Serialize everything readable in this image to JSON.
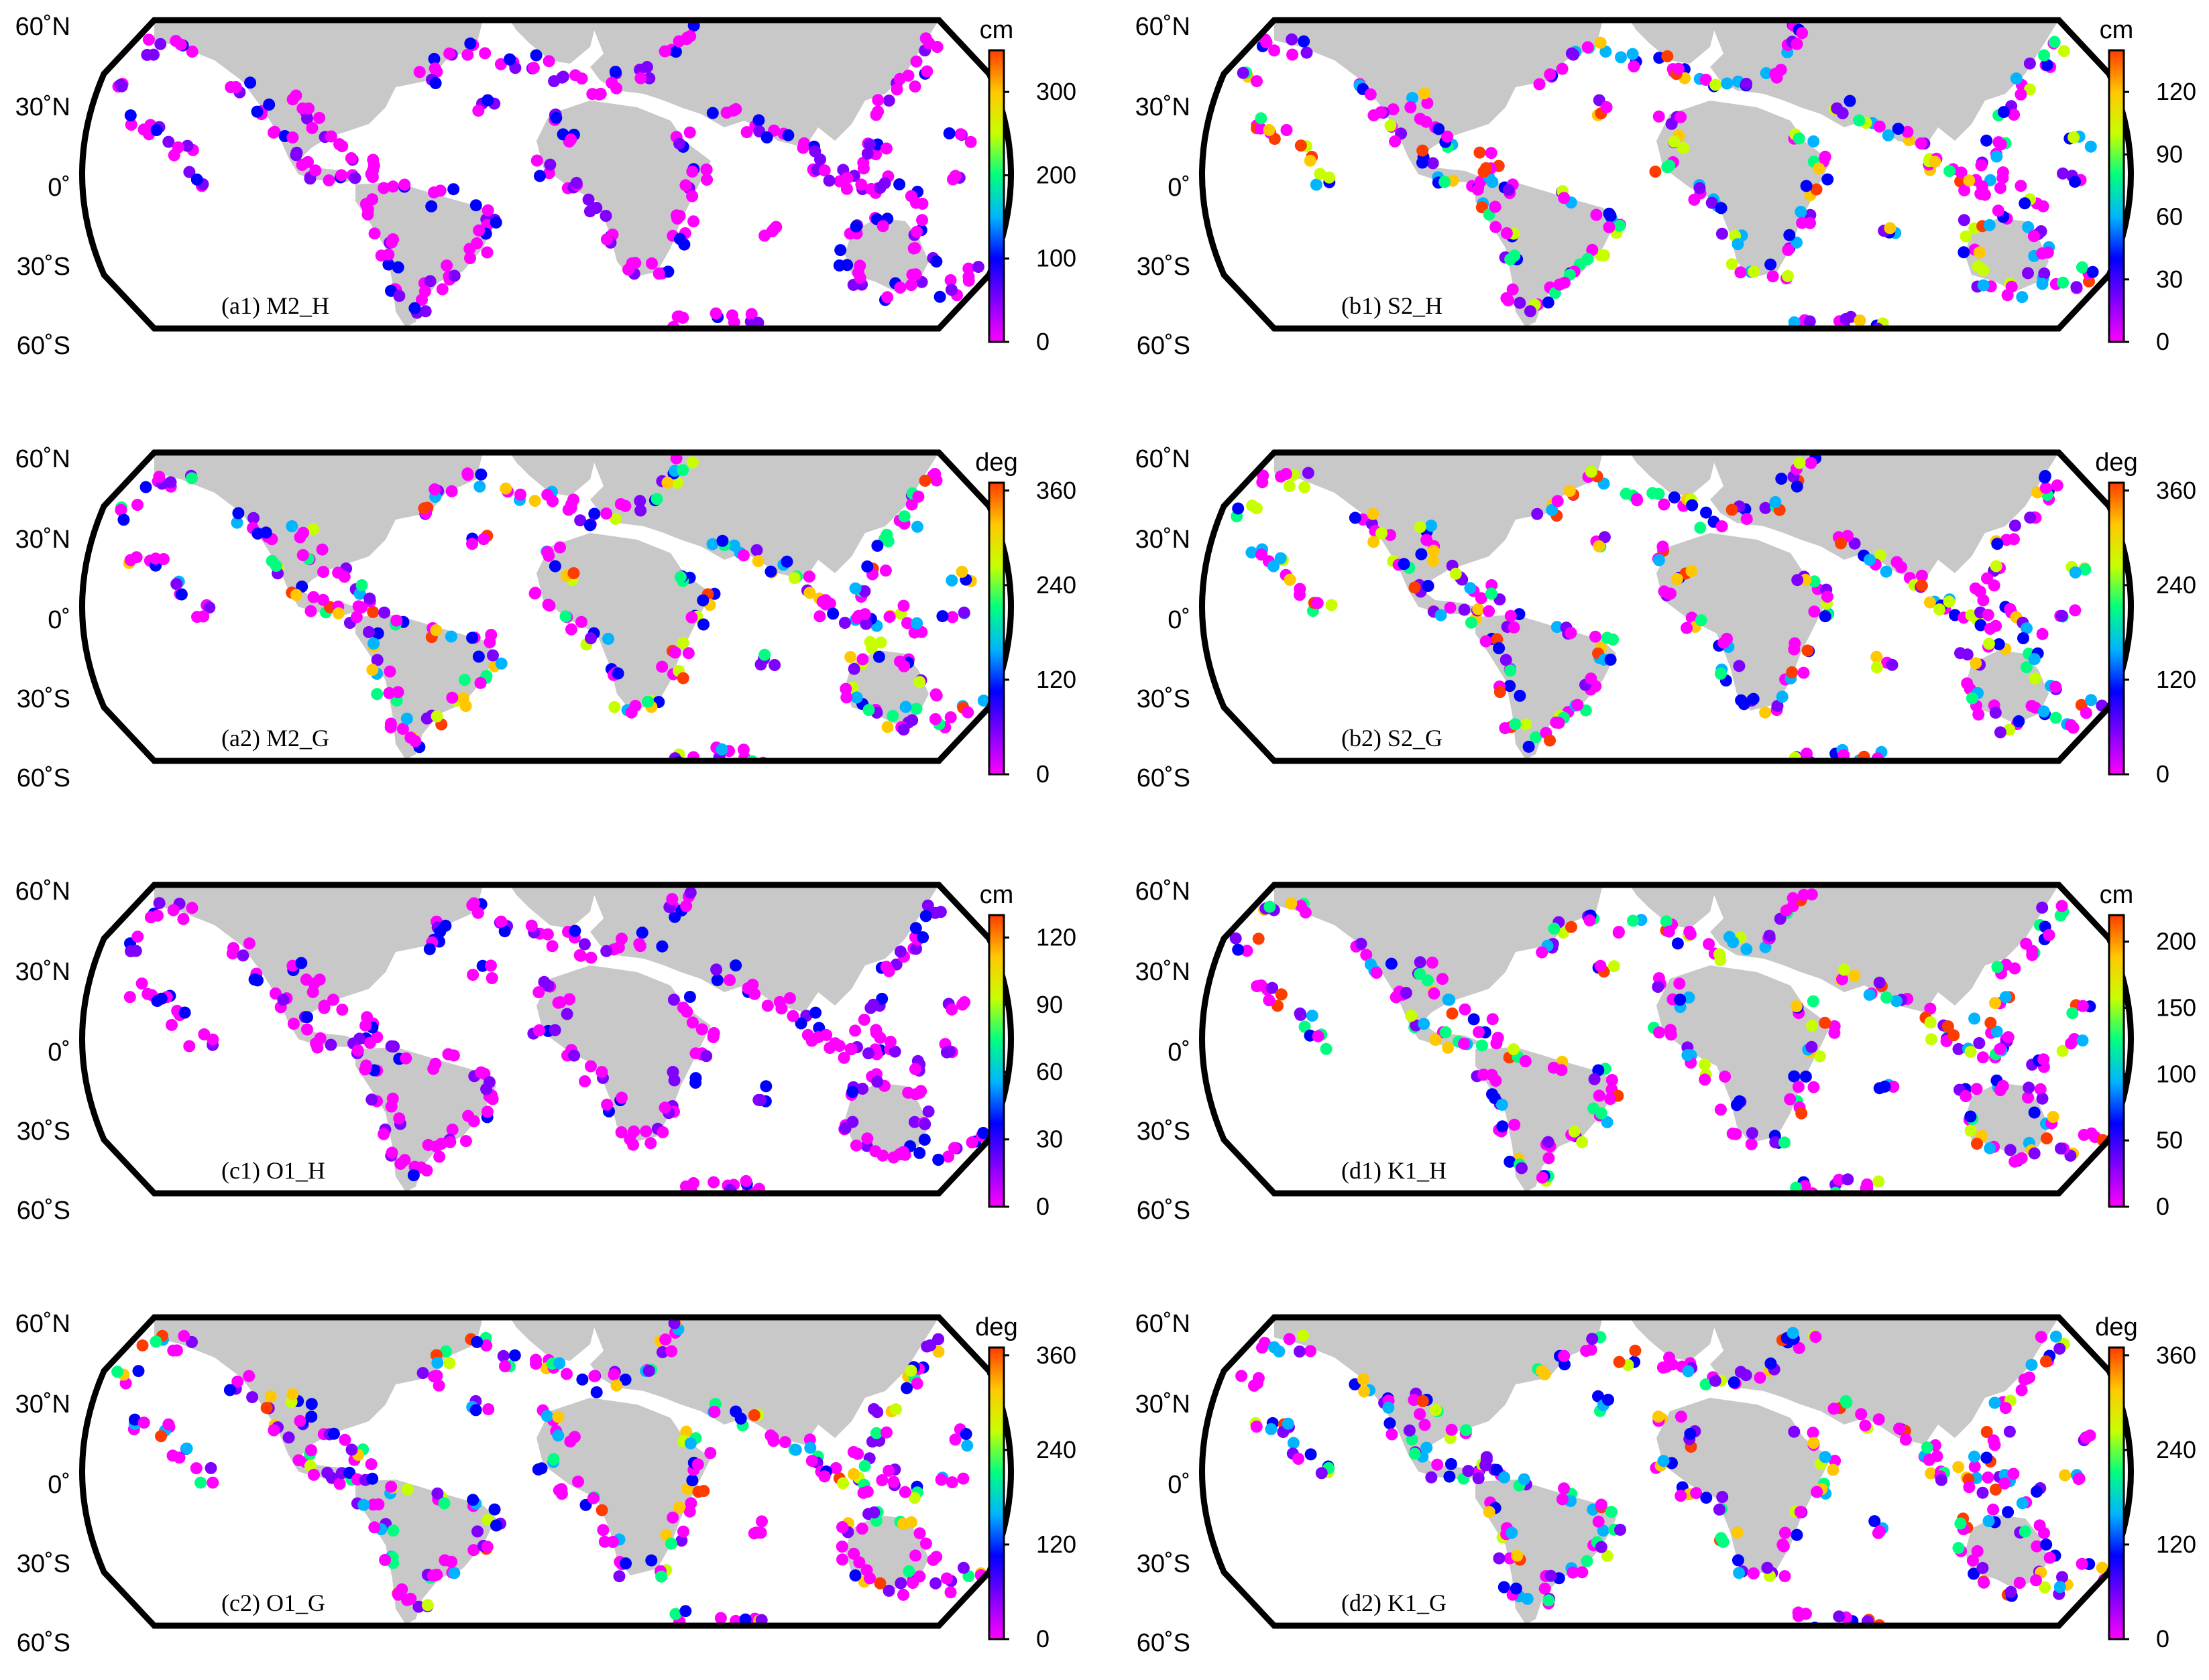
{
  "colors": {
    "land": "#c8c8c8",
    "frame": "#000000",
    "colorbar": [
      "#ff00ff",
      "#8000ff",
      "#0000ff",
      "#00b4ff",
      "#00ff80",
      "#c8ff00",
      "#ffc800",
      "#ff3c00"
    ]
  },
  "latitude_labels": [
    "60˚N",
    "30˚N",
    "0˚",
    "30˚S",
    "60˚S"
  ],
  "panels": [
    {
      "id": "a1",
      "label": "(a1) M2_H",
      "unit": "cm",
      "ticks": [
        "0",
        "100",
        "200",
        "300"
      ],
      "vmax": 350
    },
    {
      "id": "b1",
      "label": "(b1) S2_H",
      "unit": "cm",
      "ticks": [
        "0",
        "30",
        "60",
        "90",
        "120"
      ],
      "vmax": 140
    },
    {
      "id": "a2",
      "label": "(a2) M2_G",
      "unit": "deg",
      "ticks": [
        "0",
        "120",
        "240",
        "360"
      ],
      "vmax": 370
    },
    {
      "id": "b2",
      "label": "(b2) S2_G",
      "unit": "deg",
      "ticks": [
        "0",
        "120",
        "240",
        "360"
      ],
      "vmax": 370
    },
    {
      "id": "c1",
      "label": "(c1) O1_H",
      "unit": "cm",
      "ticks": [
        "0",
        "30",
        "60",
        "90",
        "120"
      ],
      "vmax": 130
    },
    {
      "id": "d1",
      "label": "(d1) K1_H",
      "unit": "cm",
      "ticks": [
        "0",
        "50",
        "100",
        "150",
        "200"
      ],
      "vmax": 220
    },
    {
      "id": "c2",
      "label": "(c2) O1_G",
      "unit": "deg",
      "ticks": [
        "0",
        "120",
        "240",
        "360"
      ],
      "vmax": 370
    },
    {
      "id": "d2",
      "label": "(d2) K1_G",
      "unit": "deg",
      "ticks": [
        "0",
        "120",
        "240",
        "360"
      ],
      "vmax": 370
    }
  ]
}
